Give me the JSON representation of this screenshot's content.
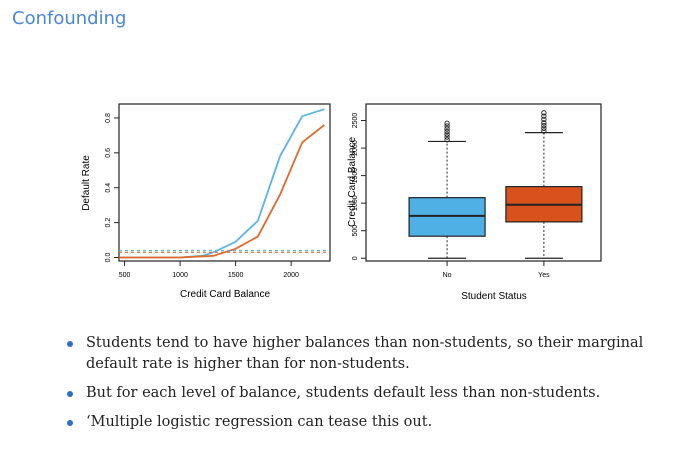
{
  "slide": {
    "title": "Confounding"
  },
  "bullets": [
    "Students tend to have higher balances than non-students, so their marginal default rate is higher than for non-students.",
    "But for each level of balance, students default less than non-students.",
    "‘Multiple logistic regression can tease this out."
  ],
  "chart_data": [
    {
      "type": "line",
      "xlabel": "Credit Card Balance",
      "ylabel": "Default Rate",
      "xlim": [
        450,
        2350
      ],
      "ylim": [
        -0.02,
        0.88
      ],
      "xticks": [
        500,
        1000,
        1500,
        2000
      ],
      "yticks": [
        0.0,
        0.2,
        0.4,
        0.6,
        0.8
      ],
      "series": [
        {
          "color": "#5ab4e5",
          "style": "solid",
          "x": [
            450,
            1000,
            1200,
            1300,
            1500,
            1700,
            1900,
            2100,
            2300
          ],
          "y": [
            0.0,
            0.0,
            0.01,
            0.03,
            0.09,
            0.21,
            0.58,
            0.81,
            0.85
          ]
        },
        {
          "color": "#e06a2c",
          "style": "solid",
          "x": [
            450,
            1000,
            1300,
            1500,
            1700,
            1900,
            2100,
            2300
          ],
          "y": [
            0.0,
            0.0,
            0.01,
            0.05,
            0.12,
            0.36,
            0.66,
            0.76
          ]
        },
        {
          "color": "#5ab4e5",
          "style": "dashed",
          "x": [
            450,
            2350
          ],
          "y": [
            0.04,
            0.04
          ]
        },
        {
          "color": "#e06a2c",
          "style": "dashed",
          "x": [
            450,
            2350
          ],
          "y": [
            0.03,
            0.03
          ]
        }
      ]
    },
    {
      "type": "box",
      "xlabel": "Student Status",
      "ylabel": "Credit Card Balance",
      "categories": [
        "No",
        "Yes"
      ],
      "ylim": [
        -50,
        2800
      ],
      "yticks": [
        0,
        500,
        1000,
        1500,
        2000,
        2500
      ],
      "ytick_labels": [
        "0",
        "500",
        "1000",
        "1500",
        "2000",
        "2500"
      ],
      "boxes": [
        {
          "category": "No",
          "color": "#4fb0e6",
          "whisker_low": 0,
          "q1": 400,
          "median": 770,
          "q3": 1100,
          "whisker_high": 2120,
          "outliers": [
            2150,
            2200,
            2250,
            2300,
            2350,
            2400,
            2450
          ]
        },
        {
          "category": "Yes",
          "color": "#d9521c",
          "whisker_low": 0,
          "q1": 660,
          "median": 970,
          "q3": 1300,
          "whisker_high": 2280,
          "outliers": [
            2310,
            2360,
            2410,
            2460,
            2520,
            2580,
            2640
          ]
        }
      ]
    }
  ]
}
